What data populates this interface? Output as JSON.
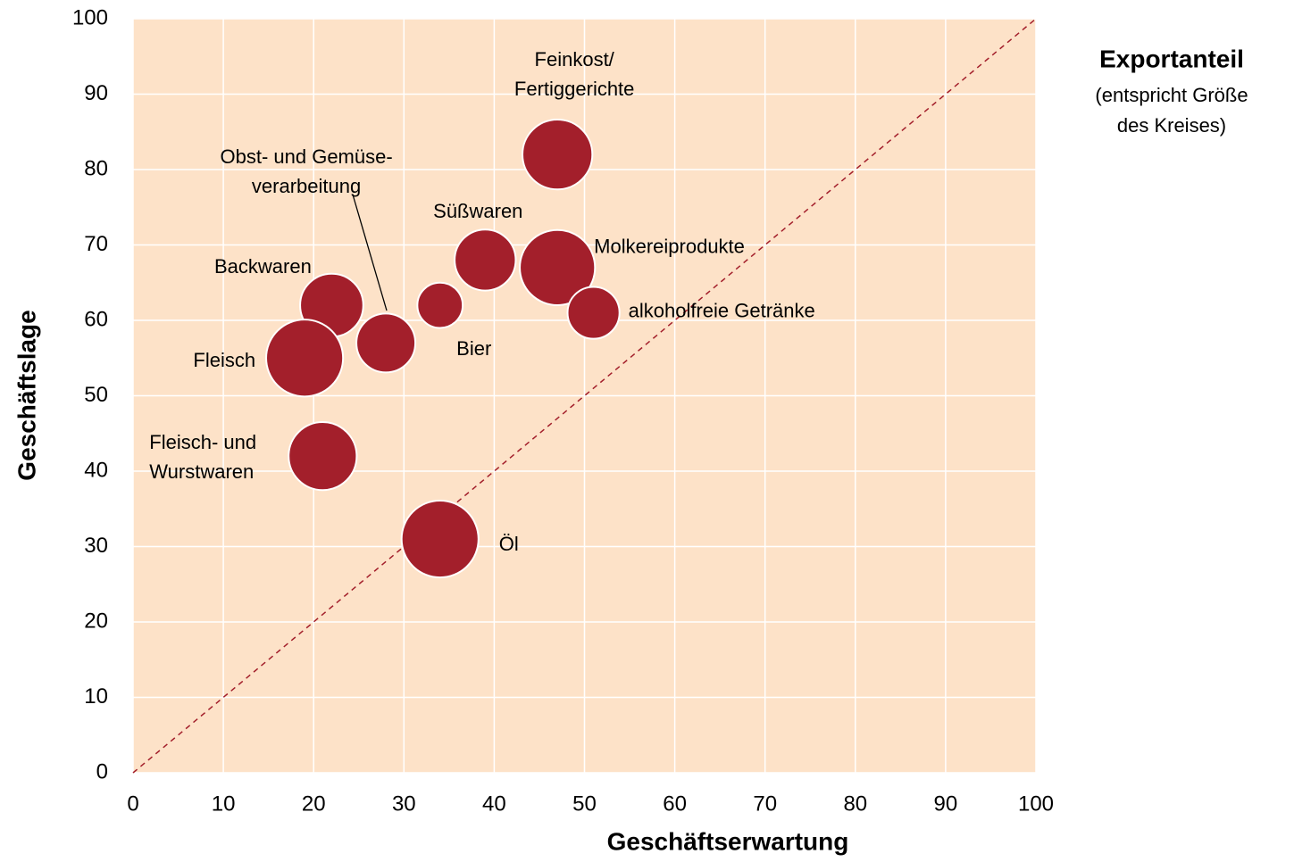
{
  "chart_data": {
    "type": "bubble",
    "x_label": "Geschäftserwartung",
    "y_label": "Geschäftslage",
    "size_legend": {
      "title": "Exportanteil",
      "text": [
        "(entspricht Größe",
        "des Kreises)"
      ]
    },
    "points": [
      {
        "label": [
          "Feinkost/",
          "Fertiggerichte"
        ],
        "x": 47,
        "y": 82,
        "size": 38
      },
      {
        "label": [
          "Süßwaren"
        ],
        "x": 39,
        "y": 68,
        "size": 29
      },
      {
        "label": [
          "Molkereiprodukte"
        ],
        "x": 47,
        "y": 67,
        "size": 44
      },
      {
        "label": [
          "alkoholfreie Getränke"
        ],
        "x": 51,
        "y": 61,
        "size": 21
      },
      {
        "label": [
          "Bier"
        ],
        "x": 34,
        "y": 62,
        "size": 16
      },
      {
        "label": [
          "Backwaren"
        ],
        "x": 22,
        "y": 62,
        "size": 31
      },
      {
        "label": [
          "Obst- und Gemüse-",
          "verarbeitung"
        ],
        "x": 28,
        "y": 57,
        "size": 27
      },
      {
        "label": [
          "Fleisch"
        ],
        "x": 19,
        "y": 55,
        "size": 46
      },
      {
        "label": [
          "Fleisch- und",
          "Wurstwaren"
        ],
        "x": 21,
        "y": 42,
        "size": 36
      },
      {
        "label": [
          "Öl"
        ],
        "x": 34,
        "y": 31,
        "size": 46
      }
    ],
    "color": "#a31f2b",
    "diagonal": {
      "x": [
        0,
        100
      ],
      "y": [
        0,
        100
      ]
    },
    "xlim": [
      0,
      100
    ],
    "ylim": [
      0,
      100
    ],
    "xticks": [
      0,
      10,
      20,
      30,
      40,
      50,
      60,
      70,
      80,
      90,
      100
    ],
    "yticks": [
      0,
      10,
      20,
      30,
      40,
      50,
      60,
      70,
      80,
      90,
      100
    ],
    "grid": true
  }
}
